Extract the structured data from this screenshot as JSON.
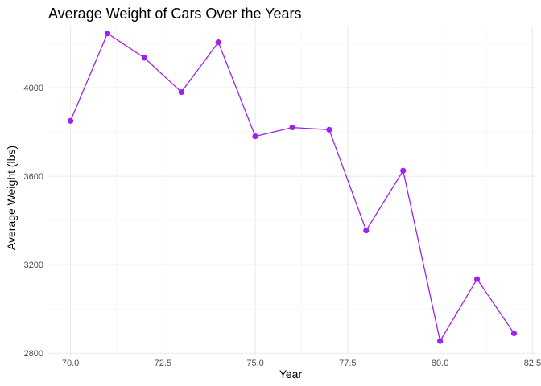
{
  "chart_data": {
    "type": "line",
    "title": "Average Weight of Cars Over the Years",
    "xlabel": "Year",
    "ylabel": "Average Weight (lbs)",
    "xlim": [
      69.4,
      82.6
    ],
    "ylim": [
      2790,
      4280
    ],
    "xticks": [
      70.0,
      72.5,
      75.0,
      77.5,
      80.0,
      82.5
    ],
    "xtick_labels": [
      "70.0",
      "72.5",
      "75.0",
      "77.5",
      "80.0",
      "82.5"
    ],
    "yticks": [
      2800,
      3200,
      3600,
      4000
    ],
    "ytick_labels": [
      "2800",
      "3200",
      "3600",
      "4000"
    ],
    "grid": true,
    "legend": "none",
    "series": [
      {
        "color": "#a020f0",
        "x": [
          70,
          71,
          72,
          73,
          74,
          75,
          76,
          77,
          78,
          79,
          80,
          81,
          82
        ],
        "y": [
          3850,
          4245,
          4135,
          3980,
          4205,
          3780,
          3820,
          3810,
          3355,
          3625,
          2855,
          3135,
          2890
        ]
      }
    ]
  }
}
